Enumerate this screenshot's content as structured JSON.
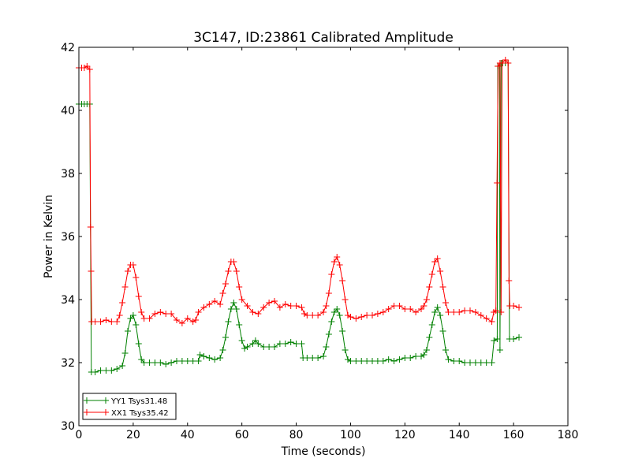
{
  "chart_data": {
    "type": "line",
    "title": "3C147, ID:23861 Calibrated Amplitude",
    "xlabel": "Time (seconds)",
    "ylabel": "Power in Kelvin",
    "xlim": [
      0,
      180
    ],
    "ylim": [
      30,
      42
    ],
    "xticks": [
      "0",
      "20",
      "40",
      "60",
      "80",
      "100",
      "120",
      "140",
      "160",
      "180"
    ],
    "yticks": [
      "30",
      "32",
      "34",
      "36",
      "38",
      "40",
      "42"
    ],
    "grid": false,
    "legend_position": "lower-left",
    "marker": "+",
    "series": [
      {
        "name": "YY1 Tsys31.48",
        "color": "#008000",
        "points": [
          [
            0,
            40.2
          ],
          [
            1,
            40.2
          ],
          [
            2,
            40.2
          ],
          [
            3,
            40.2
          ],
          [
            4,
            40.2
          ],
          [
            4.6,
            31.7
          ],
          [
            6,
            31.7
          ],
          [
            8,
            31.75
          ],
          [
            10,
            31.75
          ],
          [
            12,
            31.75
          ],
          [
            14,
            31.8
          ],
          [
            16,
            31.9
          ],
          [
            17,
            32.3
          ],
          [
            18,
            33.0
          ],
          [
            19,
            33.4
          ],
          [
            20,
            33.5
          ],
          [
            21,
            33.2
          ],
          [
            22,
            32.6
          ],
          [
            23,
            32.1
          ],
          [
            24,
            32.0
          ],
          [
            26,
            32.0
          ],
          [
            28,
            32.0
          ],
          [
            30,
            32.0
          ],
          [
            32,
            31.95
          ],
          [
            34,
            32.0
          ],
          [
            36,
            32.05
          ],
          [
            38,
            32.05
          ],
          [
            40,
            32.05
          ],
          [
            42,
            32.05
          ],
          [
            44,
            32.05
          ],
          [
            44.6,
            32.25
          ],
          [
            46,
            32.2
          ],
          [
            48,
            32.15
          ],
          [
            50,
            32.1
          ],
          [
            52,
            32.15
          ],
          [
            53,
            32.4
          ],
          [
            54,
            32.8
          ],
          [
            55,
            33.3
          ],
          [
            56,
            33.7
          ],
          [
            57,
            33.9
          ],
          [
            58,
            33.7
          ],
          [
            59,
            33.2
          ],
          [
            60,
            32.7
          ],
          [
            61,
            32.45
          ],
          [
            62,
            32.5
          ],
          [
            64,
            32.6
          ],
          [
            65,
            32.7
          ],
          [
            66,
            32.6
          ],
          [
            68,
            32.5
          ],
          [
            70,
            32.5
          ],
          [
            72,
            32.5
          ],
          [
            74,
            32.6
          ],
          [
            76,
            32.6
          ],
          [
            78,
            32.65
          ],
          [
            80,
            32.6
          ],
          [
            82,
            32.6
          ],
          [
            82.5,
            32.15
          ],
          [
            84,
            32.15
          ],
          [
            86,
            32.15
          ],
          [
            88,
            32.15
          ],
          [
            90,
            32.2
          ],
          [
            91,
            32.5
          ],
          [
            92,
            32.9
          ],
          [
            93,
            33.3
          ],
          [
            94,
            33.6
          ],
          [
            95,
            33.7
          ],
          [
            96,
            33.5
          ],
          [
            97,
            33.0
          ],
          [
            98,
            32.4
          ],
          [
            99,
            32.1
          ],
          [
            100,
            32.05
          ],
          [
            102,
            32.05
          ],
          [
            104,
            32.05
          ],
          [
            106,
            32.05
          ],
          [
            108,
            32.05
          ],
          [
            110,
            32.05
          ],
          [
            112,
            32.05
          ],
          [
            114,
            32.1
          ],
          [
            116,
            32.05
          ],
          [
            118,
            32.1
          ],
          [
            120,
            32.15
          ],
          [
            122,
            32.15
          ],
          [
            124,
            32.2
          ],
          [
            126,
            32.2
          ],
          [
            127,
            32.25
          ],
          [
            128,
            32.4
          ],
          [
            129,
            32.8
          ],
          [
            130,
            33.2
          ],
          [
            131,
            33.6
          ],
          [
            132,
            33.75
          ],
          [
            133,
            33.5
          ],
          [
            134,
            33.0
          ],
          [
            135,
            32.4
          ],
          [
            136,
            32.1
          ],
          [
            138,
            32.05
          ],
          [
            140,
            32.05
          ],
          [
            142,
            32.0
          ],
          [
            144,
            32.0
          ],
          [
            146,
            32.0
          ],
          [
            148,
            32.0
          ],
          [
            150,
            32.0
          ],
          [
            152,
            32.0
          ],
          [
            152.8,
            32.7
          ],
          [
            154,
            32.75
          ],
          [
            154.2,
            41.4
          ],
          [
            154.8,
            41.4
          ],
          [
            155,
            32.4
          ],
          [
            155.4,
            41.5
          ],
          [
            156,
            41.5
          ],
          [
            157,
            41.5
          ],
          [
            158,
            41.5
          ],
          [
            158.5,
            32.75
          ],
          [
            160,
            32.75
          ],
          [
            162,
            32.8
          ]
        ]
      },
      {
        "name": "XX1 Tsys35.42",
        "color": "#ff0000",
        "points": [
          [
            0,
            41.35
          ],
          [
            1,
            41.35
          ],
          [
            2,
            41.35
          ],
          [
            3,
            41.4
          ],
          [
            4,
            41.3
          ],
          [
            4.3,
            36.3
          ],
          [
            4.5,
            34.9
          ],
          [
            4.7,
            33.3
          ],
          [
            6,
            33.3
          ],
          [
            8,
            33.3
          ],
          [
            10,
            33.35
          ],
          [
            12,
            33.3
          ],
          [
            14,
            33.3
          ],
          [
            15,
            33.5
          ],
          [
            16,
            33.9
          ],
          [
            17,
            34.4
          ],
          [
            18,
            34.9
          ],
          [
            19,
            35.1
          ],
          [
            20,
            35.1
          ],
          [
            21,
            34.7
          ],
          [
            22,
            34.1
          ],
          [
            23,
            33.6
          ],
          [
            24,
            33.4
          ],
          [
            26,
            33.4
          ],
          [
            28,
            33.55
          ],
          [
            30,
            33.6
          ],
          [
            32,
            33.55
          ],
          [
            34,
            33.55
          ],
          [
            36,
            33.35
          ],
          [
            38,
            33.25
          ],
          [
            40,
            33.4
          ],
          [
            42,
            33.3
          ],
          [
            43,
            33.35
          ],
          [
            44,
            33.6
          ],
          [
            46,
            33.75
          ],
          [
            48,
            33.85
          ],
          [
            50,
            33.95
          ],
          [
            52,
            33.85
          ],
          [
            53,
            34.2
          ],
          [
            54,
            34.5
          ],
          [
            55,
            34.9
          ],
          [
            56,
            35.2
          ],
          [
            57,
            35.2
          ],
          [
            58,
            34.9
          ],
          [
            59,
            34.4
          ],
          [
            60,
            34.0
          ],
          [
            62,
            33.8
          ],
          [
            64,
            33.6
          ],
          [
            66,
            33.55
          ],
          [
            68,
            33.75
          ],
          [
            70,
            33.9
          ],
          [
            72,
            33.95
          ],
          [
            74,
            33.75
          ],
          [
            76,
            33.85
          ],
          [
            78,
            33.8
          ],
          [
            80,
            33.8
          ],
          [
            82,
            33.75
          ],
          [
            83,
            33.55
          ],
          [
            84,
            33.5
          ],
          [
            86,
            33.5
          ],
          [
            88,
            33.5
          ],
          [
            90,
            33.6
          ],
          [
            91,
            33.8
          ],
          [
            92,
            34.2
          ],
          [
            93,
            34.8
          ],
          [
            94,
            35.2
          ],
          [
            95,
            35.35
          ],
          [
            96,
            35.1
          ],
          [
            97,
            34.6
          ],
          [
            98,
            34.0
          ],
          [
            99,
            33.5
          ],
          [
            100,
            33.45
          ],
          [
            102,
            33.4
          ],
          [
            104,
            33.45
          ],
          [
            106,
            33.5
          ],
          [
            108,
            33.5
          ],
          [
            110,
            33.55
          ],
          [
            112,
            33.6
          ],
          [
            114,
            33.7
          ],
          [
            116,
            33.8
          ],
          [
            118,
            33.8
          ],
          [
            120,
            33.7
          ],
          [
            122,
            33.7
          ],
          [
            124,
            33.6
          ],
          [
            126,
            33.7
          ],
          [
            127,
            33.8
          ],
          [
            128,
            34.0
          ],
          [
            129,
            34.4
          ],
          [
            130,
            34.8
          ],
          [
            131,
            35.2
          ],
          [
            132,
            35.3
          ],
          [
            133,
            34.9
          ],
          [
            134,
            34.4
          ],
          [
            135,
            33.9
          ],
          [
            136,
            33.6
          ],
          [
            138,
            33.6
          ],
          [
            140,
            33.6
          ],
          [
            142,
            33.65
          ],
          [
            144,
            33.65
          ],
          [
            146,
            33.6
          ],
          [
            148,
            33.5
          ],
          [
            150,
            33.4
          ],
          [
            152,
            33.3
          ],
          [
            152.7,
            33.6
          ],
          [
            153.5,
            33.65
          ],
          [
            153.9,
            37.7
          ],
          [
            154.3,
            41.4
          ],
          [
            155,
            41.5
          ],
          [
            155.4,
            33.6
          ],
          [
            155.8,
            41.5
          ],
          [
            157,
            41.6
          ],
          [
            158,
            41.5
          ],
          [
            158.3,
            34.6
          ],
          [
            158.6,
            33.8
          ],
          [
            160,
            33.8
          ],
          [
            162,
            33.75
          ]
        ]
      }
    ]
  }
}
